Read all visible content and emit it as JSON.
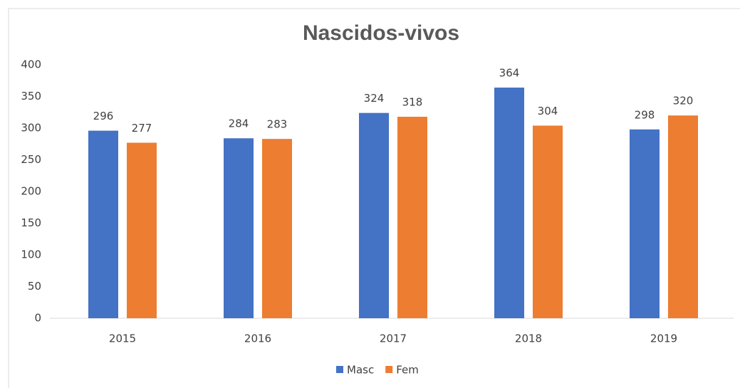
{
  "chart_data": {
    "type": "bar",
    "title": "Nascidos-vivos",
    "categories": [
      "2015",
      "2016",
      "2017",
      "2018",
      "2019"
    ],
    "series": [
      {
        "name": "Masc",
        "color": "#4472c4",
        "values": [
          296,
          284,
          324,
          364,
          298
        ]
      },
      {
        "name": "Fem",
        "color": "#ed7d31",
        "values": [
          277,
          283,
          318,
          304,
          320
        ]
      }
    ],
    "ylim": [
      0,
      400
    ],
    "yticks": [
      0,
      50,
      100,
      150,
      200,
      250,
      300,
      350,
      400
    ],
    "grid": false,
    "legend": "bottom"
  }
}
